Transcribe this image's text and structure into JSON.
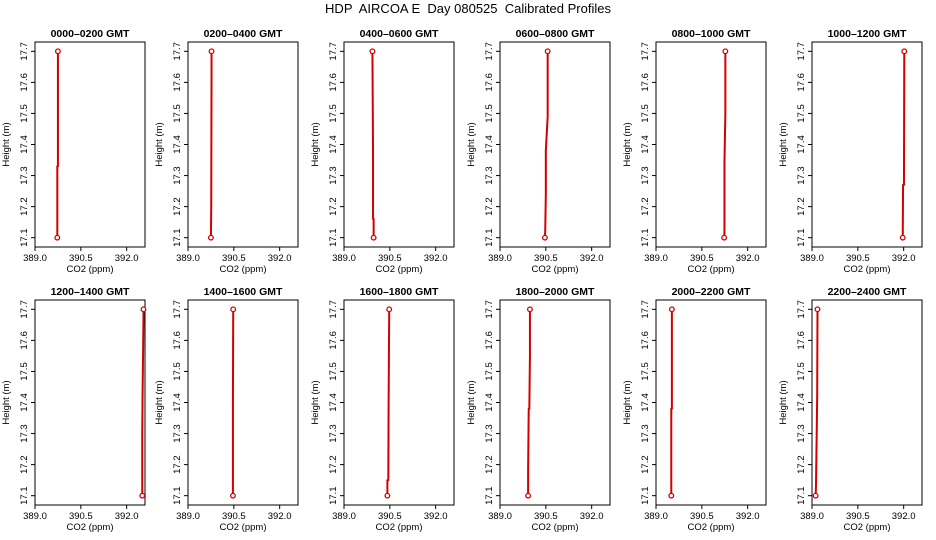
{
  "title": "HDP  AIRCOA E  Day 080525  Calibrated Profiles",
  "colors": {
    "profile": "#d40000",
    "axis": "#000000"
  },
  "chart_data": [
    {
      "type": "line",
      "title": "0000–0200 GMT",
      "xlabel": "CO2 (ppm)",
      "ylabel": "Height (m)",
      "xlim": [
        389.0,
        392.6
      ],
      "ylim": [
        17.07,
        17.73
      ],
      "xticks": [
        389.0,
        390.5,
        392.0
      ],
      "xtick_labels": [
        "389.0",
        "390.5",
        "392.0"
      ],
      "yticks": [
        17.1,
        17.2,
        17.3,
        17.4,
        17.5,
        17.6,
        17.7
      ],
      "ytick_labels": [
        "17.1",
        "17.2",
        "17.3",
        "17.4",
        "17.5",
        "17.6",
        "17.7"
      ],
      "series": [
        {
          "x": [
            389.73,
            389.73,
            389.75,
            389.75
          ],
          "y": [
            17.1,
            17.33,
            17.33,
            17.7
          ]
        }
      ],
      "markers": [
        {
          "x": 389.73,
          "y": 17.1
        },
        {
          "x": 389.75,
          "y": 17.7
        }
      ]
    },
    {
      "type": "line",
      "title": "0200–0400 GMT",
      "xlabel": "CO2 (ppm)",
      "ylabel": "Height (m)",
      "xlim": [
        389.0,
        392.6
      ],
      "ylim": [
        17.07,
        17.73
      ],
      "xticks": [
        389.0,
        390.5,
        392.0
      ],
      "xtick_labels": [
        "389.0",
        "390.5",
        "392.0"
      ],
      "yticks": [
        17.1,
        17.2,
        17.3,
        17.4,
        17.5,
        17.6,
        17.7
      ],
      "ytick_labels": [
        "17.1",
        "17.2",
        "17.3",
        "17.4",
        "17.5",
        "17.6",
        "17.7"
      ],
      "series": [
        {
          "x": [
            389.75,
            389.76,
            389.77,
            389.77
          ],
          "y": [
            17.1,
            17.2,
            17.62,
            17.7
          ]
        }
      ],
      "markers": [
        {
          "x": 389.75,
          "y": 17.1
        },
        {
          "x": 389.77,
          "y": 17.7
        }
      ]
    },
    {
      "type": "line",
      "title": "0400–0600 GMT",
      "xlabel": "CO2 (ppm)",
      "ylabel": "Height (m)",
      "xlim": [
        389.0,
        392.6
      ],
      "ylim": [
        17.07,
        17.73
      ],
      "xticks": [
        389.0,
        390.5,
        392.0
      ],
      "xtick_labels": [
        "389.0",
        "390.5",
        "392.0"
      ],
      "yticks": [
        17.1,
        17.2,
        17.3,
        17.4,
        17.5,
        17.6,
        17.7
      ],
      "ytick_labels": [
        "17.1",
        "17.2",
        "17.3",
        "17.4",
        "17.5",
        "17.6",
        "17.7"
      ],
      "series": [
        {
          "x": [
            389.97,
            389.97,
            389.95,
            389.95,
            389.93
          ],
          "y": [
            17.1,
            17.16,
            17.16,
            17.38,
            17.7
          ]
        }
      ],
      "markers": [
        {
          "x": 389.97,
          "y": 17.1
        },
        {
          "x": 389.93,
          "y": 17.7
        }
      ]
    },
    {
      "type": "line",
      "title": "0600–0800 GMT",
      "xlabel": "CO2 (ppm)",
      "ylabel": "Height (m)",
      "xlim": [
        389.0,
        392.6
      ],
      "ylim": [
        17.07,
        17.73
      ],
      "xticks": [
        389.0,
        390.5,
        392.0
      ],
      "xtick_labels": [
        "389.0",
        "390.5",
        "392.0"
      ],
      "yticks": [
        17.1,
        17.2,
        17.3,
        17.4,
        17.5,
        17.6,
        17.7
      ],
      "ytick_labels": [
        "17.1",
        "17.2",
        "17.3",
        "17.4",
        "17.5",
        "17.6",
        "17.7"
      ],
      "series": [
        {
          "x": [
            390.47,
            390.48,
            390.5,
            390.5,
            390.56,
            390.56
          ],
          "y": [
            17.1,
            17.12,
            17.24,
            17.38,
            17.49,
            17.7
          ]
        }
      ],
      "markers": [
        {
          "x": 390.47,
          "y": 17.1
        },
        {
          "x": 390.56,
          "y": 17.7
        }
      ]
    },
    {
      "type": "line",
      "title": "0800–1000 GMT",
      "xlabel": "CO2 (ppm)",
      "ylabel": "Height (m)",
      "xlim": [
        389.0,
        392.6
      ],
      "ylim": [
        17.07,
        17.73
      ],
      "xticks": [
        389.0,
        390.5,
        392.0
      ],
      "xtick_labels": [
        "389.0",
        "390.5",
        "392.0"
      ],
      "yticks": [
        17.1,
        17.2,
        17.3,
        17.4,
        17.5,
        17.6,
        17.7
      ],
      "ytick_labels": [
        "17.1",
        "17.2",
        "17.3",
        "17.4",
        "17.5",
        "17.6",
        "17.7"
      ],
      "series": [
        {
          "x": [
            391.23,
            391.24,
            391.24,
            391.27,
            391.27
          ],
          "y": [
            17.1,
            17.12,
            17.34,
            17.5,
            17.7
          ]
        }
      ],
      "markers": [
        {
          "x": 391.23,
          "y": 17.1
        },
        {
          "x": 391.27,
          "y": 17.7
        }
      ]
    },
    {
      "type": "line",
      "title": "1000–1200 GMT",
      "xlabel": "CO2 (ppm)",
      "ylabel": "Height (m)",
      "xlim": [
        389.0,
        392.6
      ],
      "ylim": [
        17.07,
        17.73
      ],
      "xticks": [
        389.0,
        390.5,
        392.0
      ],
      "xtick_labels": [
        "389.0",
        "390.5",
        "392.0"
      ],
      "yticks": [
        17.1,
        17.2,
        17.3,
        17.4,
        17.5,
        17.6,
        17.7
      ],
      "ytick_labels": [
        "17.1",
        "17.2",
        "17.3",
        "17.4",
        "17.5",
        "17.6",
        "17.7"
      ],
      "series": [
        {
          "x": [
            391.97,
            391.98,
            392.01,
            392.02
          ],
          "y": [
            17.1,
            17.27,
            17.27,
            17.7
          ]
        }
      ],
      "markers": [
        {
          "x": 391.97,
          "y": 17.1
        },
        {
          "x": 392.02,
          "y": 17.7
        }
      ]
    },
    {
      "type": "line",
      "title": "1200–1400 GMT",
      "xlabel": "CO2 (ppm)",
      "ylabel": "Height (m)",
      "xlim": [
        389.0,
        392.6
      ],
      "ylim": [
        17.07,
        17.73
      ],
      "xticks": [
        389.0,
        390.5,
        392.0
      ],
      "xtick_labels": [
        "389.0",
        "390.5",
        "392.0"
      ],
      "yticks": [
        17.1,
        17.2,
        17.3,
        17.4,
        17.5,
        17.6,
        17.7
      ],
      "ytick_labels": [
        "17.1",
        "17.2",
        "17.3",
        "17.4",
        "17.5",
        "17.6",
        "17.7"
      ],
      "series": [
        {
          "x": [
            392.51,
            392.51,
            392.52,
            392.55,
            392.55
          ],
          "y": [
            17.1,
            17.3,
            17.42,
            17.67,
            17.7
          ]
        }
      ],
      "markers": [
        {
          "x": 392.51,
          "y": 17.1
        },
        {
          "x": 392.55,
          "y": 17.7
        }
      ]
    },
    {
      "type": "line",
      "title": "1400–1600 GMT",
      "xlabel": "CO2 (ppm)",
      "ylabel": "Height (m)",
      "xlim": [
        389.0,
        392.6
      ],
      "ylim": [
        17.07,
        17.73
      ],
      "xticks": [
        389.0,
        390.5,
        392.0
      ],
      "xtick_labels": [
        "389.0",
        "390.5",
        "392.0"
      ],
      "yticks": [
        17.1,
        17.2,
        17.3,
        17.4,
        17.5,
        17.6,
        17.7
      ],
      "ytick_labels": [
        "17.1",
        "17.2",
        "17.3",
        "17.4",
        "17.5",
        "17.6",
        "17.7"
      ],
      "series": [
        {
          "x": [
            390.47,
            390.47,
            390.48
          ],
          "y": [
            17.1,
            17.4,
            17.7
          ]
        }
      ],
      "markers": [
        {
          "x": 390.47,
          "y": 17.1
        },
        {
          "x": 390.48,
          "y": 17.7
        }
      ]
    },
    {
      "type": "line",
      "title": "1600–1800 GMT",
      "xlabel": "CO2 (ppm)",
      "ylabel": "Height (m)",
      "xlim": [
        389.0,
        392.6
      ],
      "ylim": [
        17.07,
        17.73
      ],
      "xticks": [
        389.0,
        390.5,
        392.0
      ],
      "xtick_labels": [
        "389.0",
        "390.5",
        "392.0"
      ],
      "yticks": [
        17.1,
        17.2,
        17.3,
        17.4,
        17.5,
        17.6,
        17.7
      ],
      "ytick_labels": [
        "17.1",
        "17.2",
        "17.3",
        "17.4",
        "17.5",
        "17.6",
        "17.7"
      ],
      "series": [
        {
          "x": [
            390.42,
            390.42,
            390.45,
            390.46,
            390.48
          ],
          "y": [
            17.1,
            17.15,
            17.15,
            17.4,
            17.7
          ]
        }
      ],
      "markers": [
        {
          "x": 390.42,
          "y": 17.1
        },
        {
          "x": 390.48,
          "y": 17.7
        }
      ]
    },
    {
      "type": "line",
      "title": "1800–2000 GMT",
      "xlabel": "CO2 (ppm)",
      "ylabel": "Height (m)",
      "xlim": [
        389.0,
        392.6
      ],
      "ylim": [
        17.07,
        17.73
      ],
      "xticks": [
        389.0,
        390.5,
        392.0
      ],
      "xtick_labels": [
        "389.0",
        "390.5",
        "392.0"
      ],
      "yticks": [
        17.1,
        17.2,
        17.3,
        17.4,
        17.5,
        17.6,
        17.7
      ],
      "ytick_labels": [
        "17.1",
        "17.2",
        "17.3",
        "17.4",
        "17.5",
        "17.6",
        "17.7"
      ],
      "series": [
        {
          "x": [
            389.92,
            389.92,
            389.94,
            389.96,
            389.98,
            389.98
          ],
          "y": [
            17.1,
            17.18,
            17.38,
            17.38,
            17.55,
            17.7
          ]
        }
      ],
      "markers": [
        {
          "x": 389.92,
          "y": 17.1
        },
        {
          "x": 389.98,
          "y": 17.7
        }
      ]
    },
    {
      "type": "line",
      "title": "2000–2200 GMT",
      "xlabel": "CO2 (ppm)",
      "ylabel": "Height (m)",
      "xlim": [
        389.0,
        392.6
      ],
      "ylim": [
        17.07,
        17.73
      ],
      "xticks": [
        389.0,
        390.5,
        392.0
      ],
      "xtick_labels": [
        "389.0",
        "390.5",
        "392.0"
      ],
      "yticks": [
        17.1,
        17.2,
        17.3,
        17.4,
        17.5,
        17.6,
        17.7
      ],
      "ytick_labels": [
        "17.1",
        "17.2",
        "17.3",
        "17.4",
        "17.5",
        "17.6",
        "17.7"
      ],
      "series": [
        {
          "x": [
            389.5,
            389.5,
            389.52,
            389.52
          ],
          "y": [
            17.1,
            17.38,
            17.38,
            17.7
          ]
        }
      ],
      "markers": [
        {
          "x": 389.5,
          "y": 17.1
        },
        {
          "x": 389.52,
          "y": 17.7
        }
      ]
    },
    {
      "type": "line",
      "title": "2200–2400 GMT",
      "xlabel": "CO2 (ppm)",
      "ylabel": "Height (m)",
      "xlim": [
        389.0,
        392.6
      ],
      "ylim": [
        17.07,
        17.73
      ],
      "xticks": [
        389.0,
        390.5,
        392.0
      ],
      "xtick_labels": [
        "389.0",
        "390.5",
        "392.0"
      ],
      "yticks": [
        17.1,
        17.2,
        17.3,
        17.4,
        17.5,
        17.6,
        17.7
      ],
      "ytick_labels": [
        "17.1",
        "17.2",
        "17.3",
        "17.4",
        "17.5",
        "17.6",
        "17.7"
      ],
      "series": [
        {
          "x": [
            389.12,
            389.13,
            389.15,
            389.17,
            389.18
          ],
          "y": [
            17.1,
            17.13,
            17.27,
            17.42,
            17.7
          ]
        }
      ],
      "markers": [
        {
          "x": 389.12,
          "y": 17.1
        },
        {
          "x": 389.18,
          "y": 17.7
        }
      ]
    }
  ]
}
